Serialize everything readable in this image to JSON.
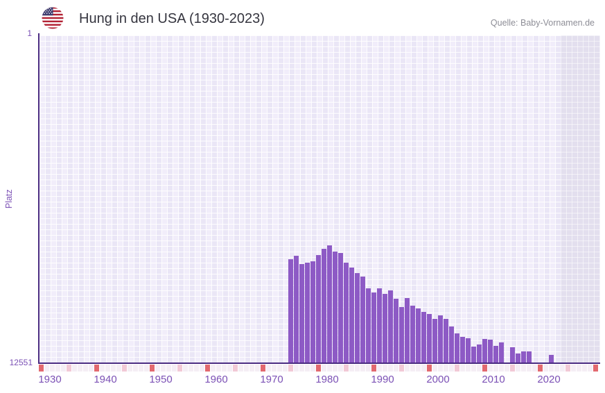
{
  "header": {
    "flag_icon": "us-flag-icon",
    "title": "Hung in den USA (1930-2023)",
    "source": "Quelle: Baby-Vornamen.de"
  },
  "chart_data": {
    "type": "bar",
    "title": "Hung in den USA (1930-2023)",
    "xlabel": "",
    "ylabel": "Platz",
    "y_axis": {
      "top_label": "1",
      "bottom_label": "12551",
      "min": 1,
      "max": 12551,
      "inverted": true,
      "note": "Rank axis: 1 (best) at top, 12551 at bottom; taller bar = better rank"
    },
    "x_axis": {
      "start_year": 1930,
      "end_year": 2023,
      "tick_labels": [
        "1930",
        "1940",
        "1950",
        "1960",
        "1970",
        "1980",
        "1990",
        "2000",
        "2010",
        "2020"
      ]
    },
    "grid": true,
    "points": [
      {
        "year": 1974,
        "rank": 8590
      },
      {
        "year": 1975,
        "rank": 8455
      },
      {
        "year": 1976,
        "rank": 8775
      },
      {
        "year": 1977,
        "rank": 8720
      },
      {
        "year": 1978,
        "rank": 8670
      },
      {
        "year": 1979,
        "rank": 8430
      },
      {
        "year": 1980,
        "rank": 8190
      },
      {
        "year": 1981,
        "rank": 8055
      },
      {
        "year": 1982,
        "rank": 8295
      },
      {
        "year": 1983,
        "rank": 8350
      },
      {
        "year": 1984,
        "rank": 8720
      },
      {
        "year": 1985,
        "rank": 8905
      },
      {
        "year": 1986,
        "rank": 9120
      },
      {
        "year": 1987,
        "rank": 9255
      },
      {
        "year": 1988,
        "rank": 9705
      },
      {
        "year": 1989,
        "rank": 9865
      },
      {
        "year": 1990,
        "rank": 9705
      },
      {
        "year": 1991,
        "rank": 9920
      },
      {
        "year": 1992,
        "rank": 9785
      },
      {
        "year": 1993,
        "rank": 10105
      },
      {
        "year": 1994,
        "rank": 10425
      },
      {
        "year": 1995,
        "rank": 10075
      },
      {
        "year": 1996,
        "rank": 10370
      },
      {
        "year": 1997,
        "rank": 10475
      },
      {
        "year": 1998,
        "rank": 10610
      },
      {
        "year": 1999,
        "rank": 10690
      },
      {
        "year": 2000,
        "rank": 10875
      },
      {
        "year": 2001,
        "rank": 10740
      },
      {
        "year": 2002,
        "rank": 10875
      },
      {
        "year": 2003,
        "rank": 11170
      },
      {
        "year": 2004,
        "rank": 11435
      },
      {
        "year": 2005,
        "rank": 11570
      },
      {
        "year": 2006,
        "rank": 11620
      },
      {
        "year": 2007,
        "rank": 11940
      },
      {
        "year": 2008,
        "rank": 11860
      },
      {
        "year": 2009,
        "rank": 11645
      },
      {
        "year": 2010,
        "rank": 11675
      },
      {
        "year": 2011,
        "rank": 11910
      },
      {
        "year": 2012,
        "rank": 11780
      },
      {
        "year": 2014,
        "rank": 11965
      },
      {
        "year": 2015,
        "rank": 12205
      },
      {
        "year": 2016,
        "rank": 12125
      },
      {
        "year": 2017,
        "rank": 12125
      },
      {
        "year": 2021,
        "rank": 12260
      }
    ],
    "years_without_rank": "1930-1973, 2013, 2018-2020, 2022-2023",
    "colors": {
      "bar": "#8D5AC5",
      "axis": "#4B2C82",
      "axis_text": "#7B50B5",
      "grid_cell": "#F1EDFA",
      "grid_cell_alt": "#EAE6F6",
      "future_band": "#E3DFEE",
      "tick_major": "#E2696F",
      "tick_minor": "#F2C9D6",
      "tick_none": "#F5EEF5",
      "title_text": "#35353F",
      "source_text": "#8D8D96"
    }
  }
}
